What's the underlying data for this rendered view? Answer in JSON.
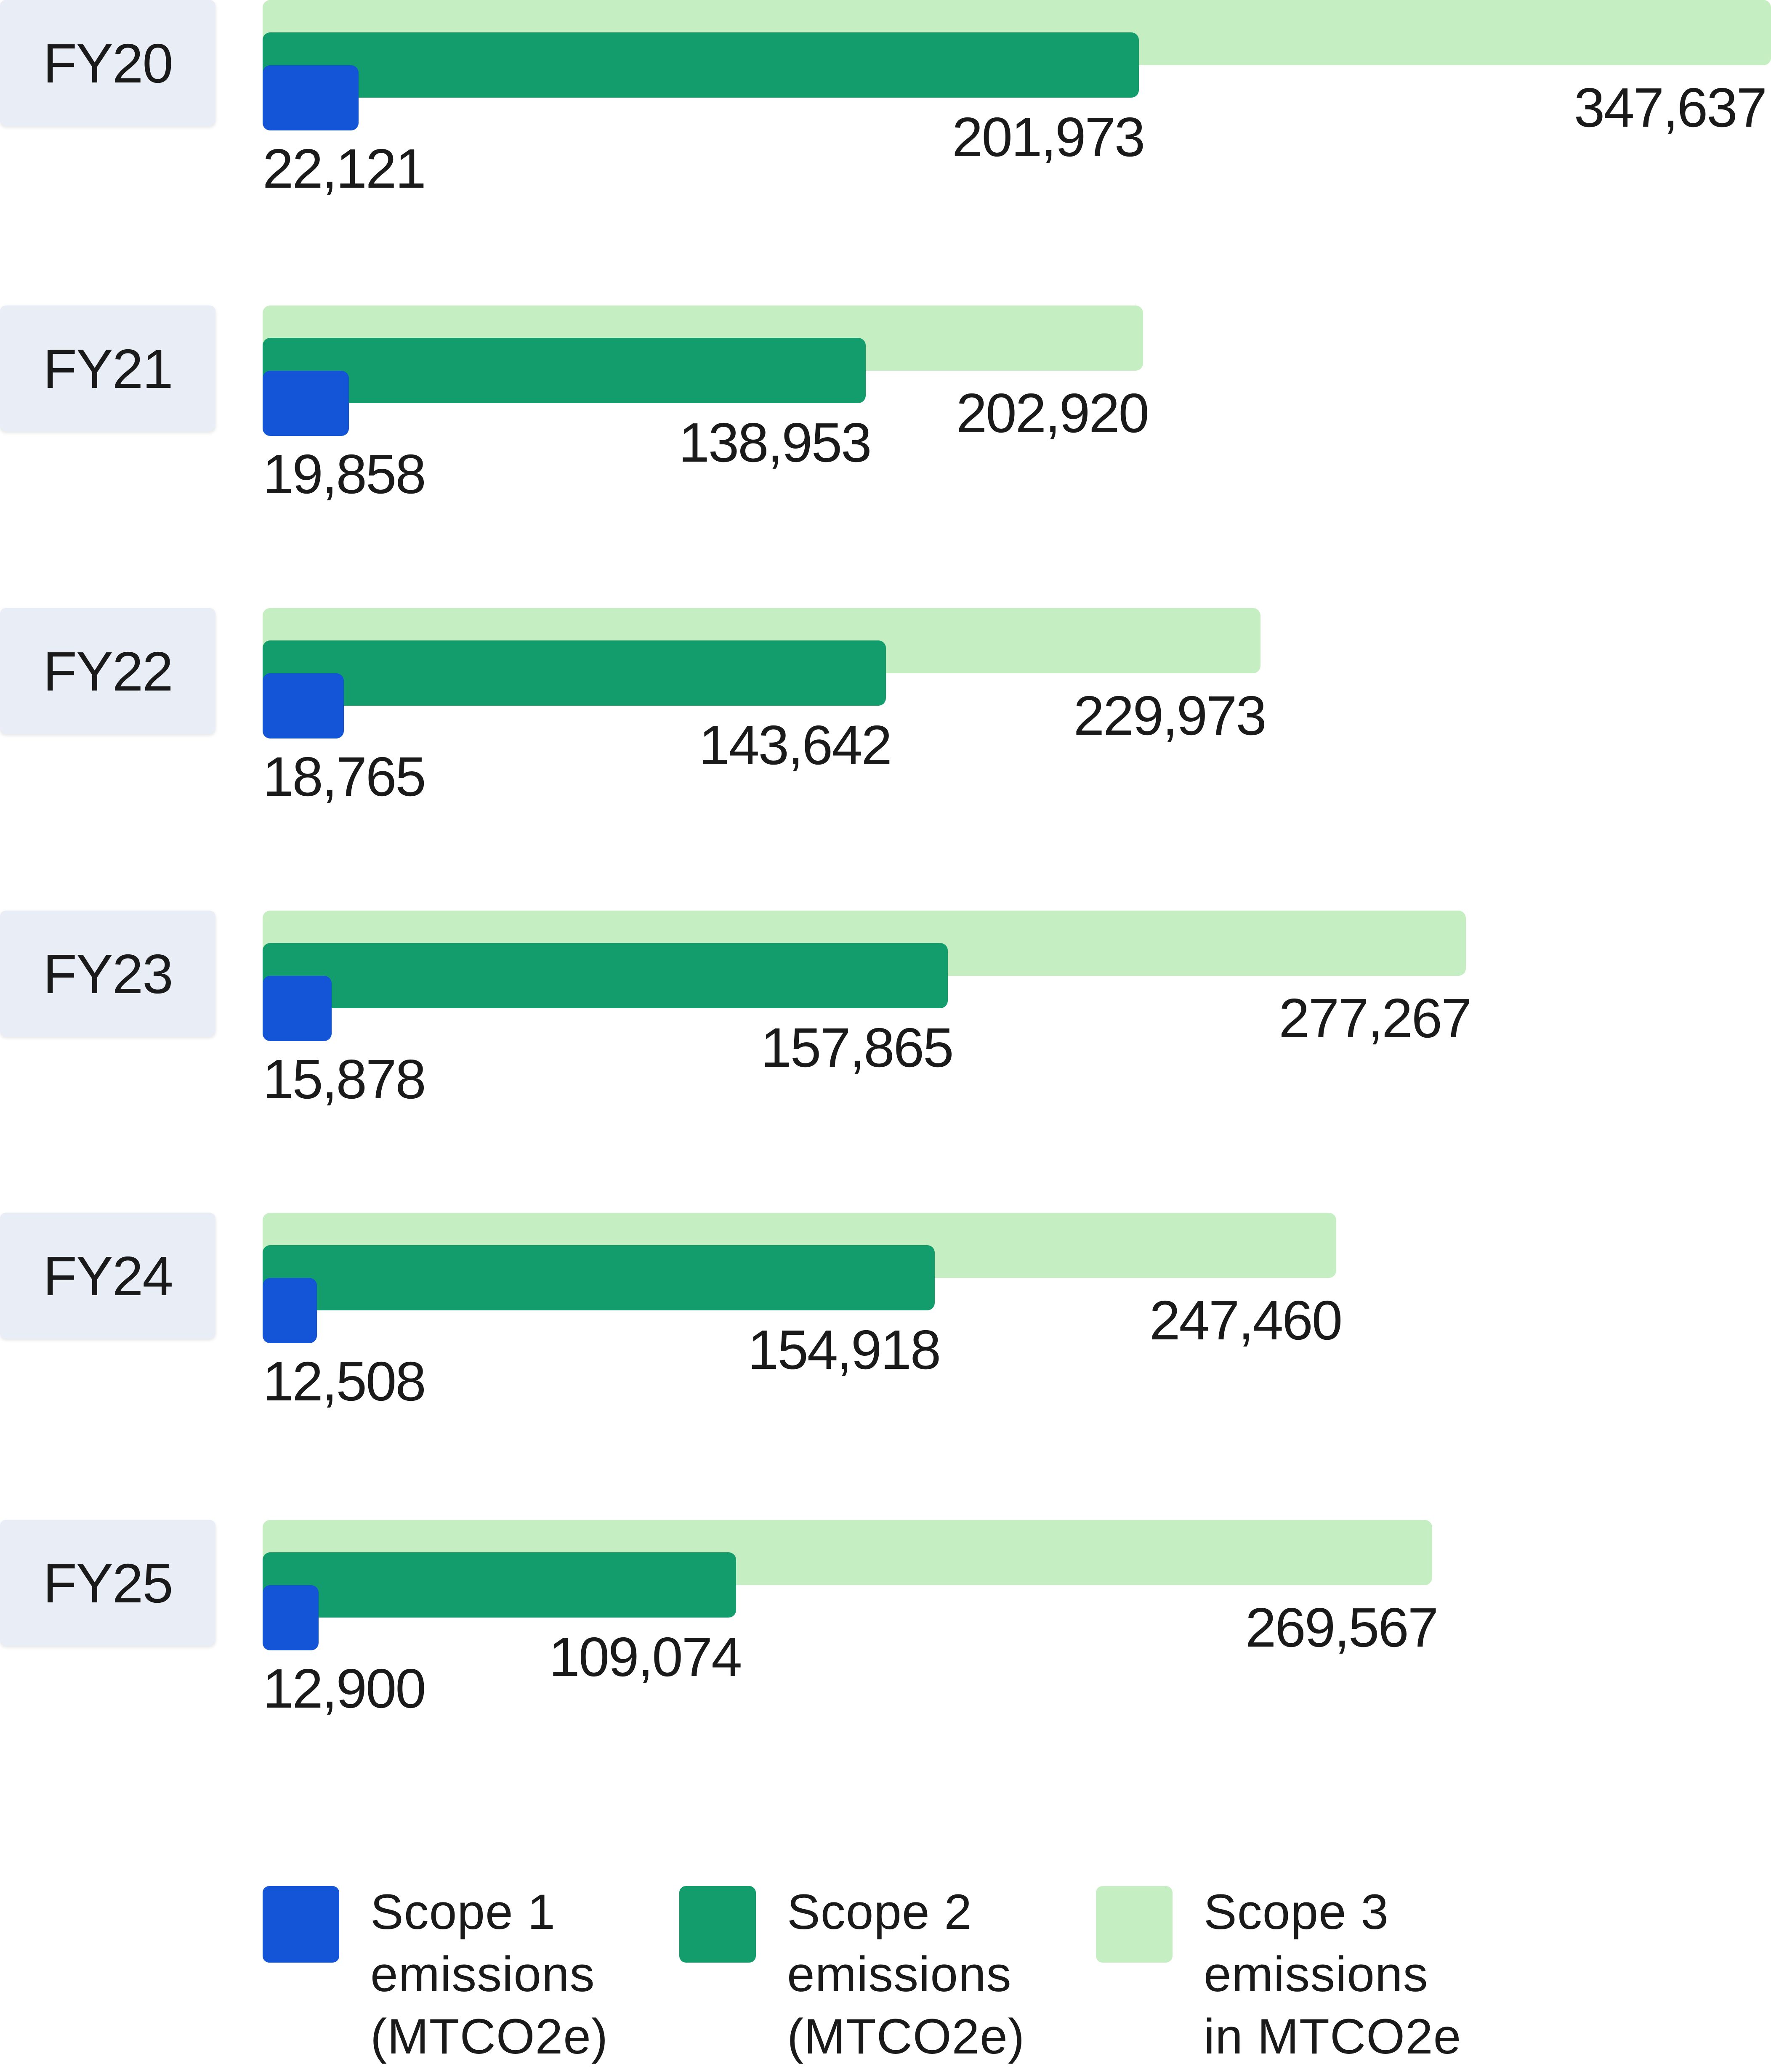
{
  "chart_data": {
    "type": "bar",
    "orientation": "horizontal",
    "categories": [
      "FY20",
      "FY21",
      "FY22",
      "FY23",
      "FY24",
      "FY25"
    ],
    "series": [
      {
        "name": "Scope 1 emissions (MTCO2e)",
        "color": "#1454d6",
        "values": [
          22121,
          19858,
          18765,
          15878,
          12508,
          12900
        ],
        "labels": [
          "22,121",
          "19,858",
          "18,765",
          "15,878",
          "12,508",
          "12,900"
        ]
      },
      {
        "name": "Scope 2 emissions (MTCO2e)",
        "color": "#139c6c",
        "values": [
          201973,
          138953,
          143642,
          157865,
          154918,
          109074
        ],
        "labels": [
          "201,973",
          "138,953",
          "143,642",
          "157,865",
          "154,918",
          "109,074"
        ]
      },
      {
        "name": "Scope 3 emissions in MTCO2e",
        "color": "#c5eec2",
        "values": [
          347637,
          202920,
          229973,
          277267,
          247460,
          269567
        ],
        "labels": [
          "347,637",
          "202,920",
          "229,973",
          "277,267",
          "247,460",
          "269,567"
        ]
      }
    ],
    "legend": {
      "position": "bottom",
      "items": [
        {
          "label": "Scope 1\nemissions\n(MTCO2e)",
          "color": "#1454d6"
        },
        {
          "label": "Scope 2\nemissions\n(MTCO2e)",
          "color": "#139c6c"
        },
        {
          "label": "Scope 3\nemissions\nin MTCO2e",
          "color": "#c5eec2"
        }
      ]
    },
    "title": "",
    "xlabel": "",
    "ylabel": "",
    "xlim": [
      0,
      347637
    ],
    "grid": false
  }
}
